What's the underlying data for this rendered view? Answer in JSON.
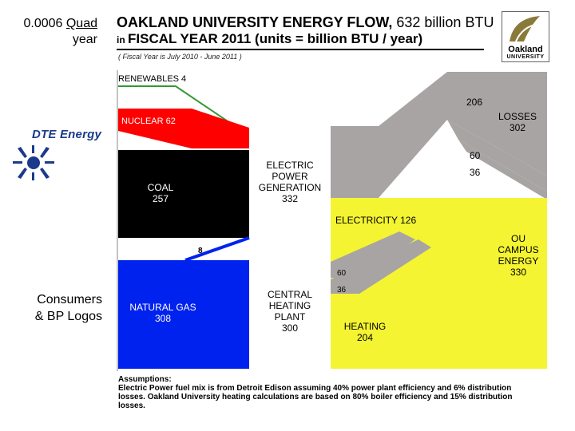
{
  "side_notes": {
    "quad_value": "0.0006",
    "quad_unit": "Quad",
    "quad_per": "year",
    "consumers_line1": "Consumers",
    "consumers_line2": "& BP Logos"
  },
  "logos": {
    "dte_text": "DTE Energy",
    "ou_line1": "Oakland",
    "ou_line2": "UNIVERSITY"
  },
  "header": {
    "title_bold": "OAKLAND UNIVERSITY ENERGY FLOW,",
    "title_normal": " 632 billion BTU",
    "title2_prefix": "in ",
    "title2_bold": "FISCAL YEAR 2011 (units = billion BTU / year)",
    "subtitle": "( Fiscal Year is July 2010 - June 2011 )"
  },
  "flows": {
    "renewables": "RENEWABLES 4",
    "nuclear": "NUCLEAR 62",
    "coal_name": "COAL",
    "coal_value": "257",
    "natgas_name": "NATURAL GAS",
    "natgas_value": "308",
    "gas_to_power": "8",
    "epg_line1": "ELECTRIC",
    "epg_line2": "POWER",
    "epg_line3": "GENERATION",
    "epg_value": "332",
    "chp_line1": "CENTRAL",
    "chp_line2": "HEATING",
    "chp_line3": "PLANT",
    "chp_value": "300",
    "loss_206": "206",
    "losses_name": "LOSSES",
    "losses_value": "302",
    "loss_60_top": "60",
    "loss_36_top": "36",
    "electricity": "ELECTRICITY 126",
    "ou_line1": "OU",
    "ou_line2": "CAMPUS",
    "ou_line3": "ENERGY",
    "ou_value": "330",
    "heat_60": "60",
    "heat_36": "36",
    "heating_name": "HEATING",
    "heating_value": "204"
  },
  "assumptions": {
    "heading": "Assumptions:",
    "text": "Electric Power fuel mix is from Detroit Edison assuming 40% power plant efficiency and 6% distribution losses.  Oakland University heating calculations are based on 80% boiler efficiency and 15% distribution losses."
  },
  "colors": {
    "nuclear": "#ff0000",
    "coal": "#000000",
    "natural_gas": "#0022ee",
    "renewables": "#339933",
    "losses": "#a8a4a4",
    "electricity": "#f4f432"
  }
}
